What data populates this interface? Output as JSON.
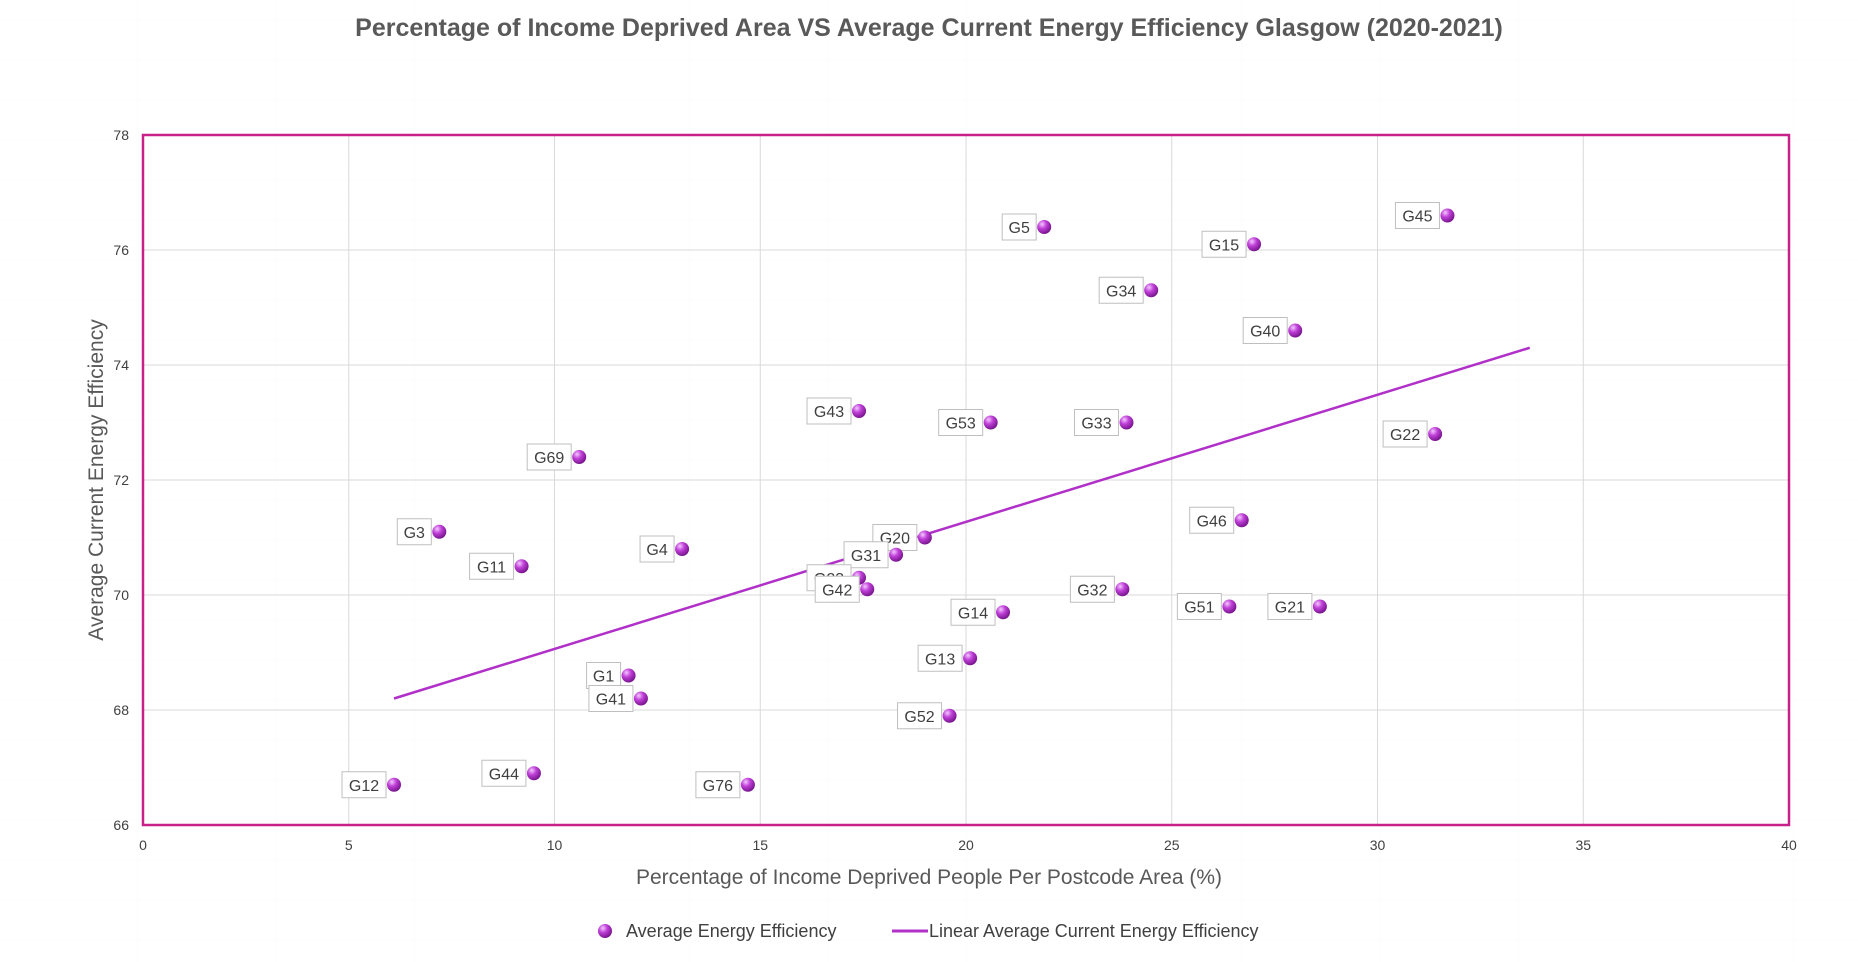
{
  "chart_data": {
    "type": "scatter",
    "title": "Percentage of Income Deprived Area VS Average Current Energy Efficiency Glasgow (2020-2021)",
    "xlabel": "Percentage of Income Deprived People Per Postcode Area (%)",
    "ylabel": "Average Current Energy Efficiency",
    "xlim": [
      0,
      40
    ],
    "ylim": [
      66,
      78
    ],
    "x_ticks": [
      0,
      5,
      10,
      15,
      20,
      25,
      30,
      35,
      40
    ],
    "y_ticks": [
      66,
      68,
      70,
      72,
      74,
      76,
      78
    ],
    "grid": true,
    "legend_placement": "bottom",
    "colors": {
      "marker": "#b030c8",
      "trendline": "#b030c8",
      "plot_border": "#c8208a"
    },
    "series": [
      {
        "name": "Average Energy Efficiency",
        "kind": "scatter",
        "points": [
          {
            "label": "G5",
            "x": 21.9,
            "y": 76.4
          },
          {
            "label": "G45",
            "x": 31.7,
            "y": 76.6
          },
          {
            "label": "G15",
            "x": 27.0,
            "y": 76.1
          },
          {
            "label": "G34",
            "x": 24.5,
            "y": 75.3
          },
          {
            "label": "G40",
            "x": 28.0,
            "y": 74.6
          },
          {
            "label": "G43",
            "x": 17.4,
            "y": 73.2
          },
          {
            "label": "G53",
            "x": 20.6,
            "y": 73.0
          },
          {
            "label": "G33",
            "x": 23.9,
            "y": 73.0
          },
          {
            "label": "G22",
            "x": 31.4,
            "y": 72.8
          },
          {
            "label": "G69",
            "x": 10.6,
            "y": 72.4
          },
          {
            "label": "G46",
            "x": 26.7,
            "y": 71.3
          },
          {
            "label": "G3",
            "x": 7.2,
            "y": 71.1
          },
          {
            "label": "G20",
            "x": 19.0,
            "y": 71.0
          },
          {
            "label": "G4",
            "x": 13.1,
            "y": 70.8
          },
          {
            "label": "G31",
            "x": 18.3,
            "y": 70.7
          },
          {
            "label": "G11",
            "x": 9.2,
            "y": 70.5
          },
          {
            "label": "G23",
            "x": 17.4,
            "y": 70.3
          },
          {
            "label": "G42",
            "x": 17.6,
            "y": 70.1
          },
          {
            "label": "G32",
            "x": 23.8,
            "y": 70.1
          },
          {
            "label": "G51",
            "x": 26.4,
            "y": 69.8
          },
          {
            "label": "G21",
            "x": 28.6,
            "y": 69.8
          },
          {
            "label": "G14",
            "x": 20.9,
            "y": 69.7
          },
          {
            "label": "G13",
            "x": 20.1,
            "y": 68.9
          },
          {
            "label": "G1",
            "x": 11.8,
            "y": 68.6
          },
          {
            "label": "G41",
            "x": 12.1,
            "y": 68.2
          },
          {
            "label": "G52",
            "x": 19.6,
            "y": 67.9
          },
          {
            "label": "G44",
            "x": 9.5,
            "y": 66.9
          },
          {
            "label": "G12",
            "x": 6.1,
            "y": 66.7
          },
          {
            "label": "G76",
            "x": 14.7,
            "y": 66.7
          }
        ]
      },
      {
        "name": "Linear Average Current Energy Efficiency",
        "kind": "trendline",
        "x": [
          6.1,
          33.7
        ],
        "y": [
          68.2,
          74.3
        ]
      }
    ]
  },
  "legend": {
    "scatter_label": "Average Energy Efficiency",
    "line_label": "Linear Average Current Energy Efficiency"
  }
}
